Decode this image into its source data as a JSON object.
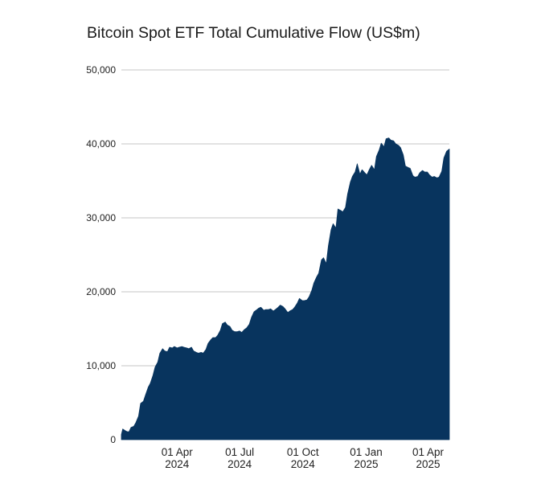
{
  "chart_data": {
    "type": "area",
    "title": "Bitcoin Spot ETF Total Cumulative Flow (US$m)",
    "xlabel": "",
    "ylabel": "",
    "ylim": [
      0,
      50000
    ],
    "yticks": [
      {
        "value": 0,
        "label": "0"
      },
      {
        "value": 10000,
        "label": "10,000"
      },
      {
        "value": 20000,
        "label": "20,000"
      },
      {
        "value": 30000,
        "label": "30,000"
      },
      {
        "value": 40000,
        "label": "40,000"
      },
      {
        "value": 50000,
        "label": "50,000"
      }
    ],
    "xlim": [
      "2024-01-11",
      "2025-05-02"
    ],
    "xticks": [
      {
        "date": "2024-04-01",
        "line1": "01 Apr",
        "line2": "2024"
      },
      {
        "date": "2024-07-01",
        "line1": "01 Jul",
        "line2": "2024"
      },
      {
        "date": "2024-10-01",
        "line1": "01 Oct",
        "line2": "2024"
      },
      {
        "date": "2025-01-01",
        "line1": "01 Jan",
        "line2": "2025"
      },
      {
        "date": "2025-04-01",
        "line1": "01 Apr",
        "line2": "2025"
      }
    ],
    "grid": true,
    "legend": "none",
    "color": "#08345e",
    "gridColor": "#d0d0d0",
    "series": [
      {
        "values": [
          [
            "2024-01-11",
            700
          ],
          [
            "2024-01-13",
            1450
          ],
          [
            "2024-01-16",
            1250
          ],
          [
            "2024-01-19",
            1100
          ],
          [
            "2024-01-22",
            1050
          ],
          [
            "2024-01-25",
            1650
          ],
          [
            "2024-01-29",
            1800
          ],
          [
            "2024-02-01",
            2300
          ],
          [
            "2024-02-05",
            3200
          ],
          [
            "2024-02-08",
            4900
          ],
          [
            "2024-02-12",
            5200
          ],
          [
            "2024-02-15",
            6000
          ],
          [
            "2024-02-19",
            7100
          ],
          [
            "2024-02-22",
            7600
          ],
          [
            "2024-02-26",
            8700
          ],
          [
            "2024-02-29",
            9800
          ],
          [
            "2024-03-04",
            10500
          ],
          [
            "2024-03-07",
            11700
          ],
          [
            "2024-03-11",
            12300
          ],
          [
            "2024-03-14",
            12000
          ],
          [
            "2024-03-18",
            11900
          ],
          [
            "2024-03-21",
            12500
          ],
          [
            "2024-03-25",
            12400
          ],
          [
            "2024-03-28",
            12600
          ],
          [
            "2024-04-01",
            12400
          ],
          [
            "2024-04-04",
            12500
          ],
          [
            "2024-04-08",
            12600
          ],
          [
            "2024-04-11",
            12500
          ],
          [
            "2024-04-15",
            12400
          ],
          [
            "2024-04-18",
            12300
          ],
          [
            "2024-04-22",
            12500
          ],
          [
            "2024-04-25",
            12000
          ],
          [
            "2024-04-29",
            11800
          ],
          [
            "2024-05-02",
            11700
          ],
          [
            "2024-05-06",
            11800
          ],
          [
            "2024-05-09",
            11700
          ],
          [
            "2024-05-13",
            12200
          ],
          [
            "2024-05-16",
            13000
          ],
          [
            "2024-05-20",
            13500
          ],
          [
            "2024-05-23",
            13800
          ],
          [
            "2024-05-27",
            13800
          ],
          [
            "2024-05-30",
            14100
          ],
          [
            "2024-06-03",
            14800
          ],
          [
            "2024-06-06",
            15700
          ],
          [
            "2024-06-10",
            15900
          ],
          [
            "2024-06-13",
            15500
          ],
          [
            "2024-06-17",
            15300
          ],
          [
            "2024-06-20",
            14800
          ],
          [
            "2024-06-24",
            14600
          ],
          [
            "2024-06-27",
            14600
          ],
          [
            "2024-07-01",
            14700
          ],
          [
            "2024-07-04",
            14500
          ],
          [
            "2024-07-08",
            14900
          ],
          [
            "2024-07-11",
            15100
          ],
          [
            "2024-07-15",
            15600
          ],
          [
            "2024-07-18",
            16500
          ],
          [
            "2024-07-22",
            17300
          ],
          [
            "2024-07-25",
            17500
          ],
          [
            "2024-07-29",
            17800
          ],
          [
            "2024-08-01",
            17900
          ],
          [
            "2024-08-05",
            17500
          ],
          [
            "2024-08-08",
            17600
          ],
          [
            "2024-08-12",
            17600
          ],
          [
            "2024-08-15",
            17700
          ],
          [
            "2024-08-19",
            17400
          ],
          [
            "2024-08-22",
            17600
          ],
          [
            "2024-08-26",
            17900
          ],
          [
            "2024-08-29",
            18200
          ],
          [
            "2024-09-02",
            18000
          ],
          [
            "2024-09-05",
            17700
          ],
          [
            "2024-09-09",
            17200
          ],
          [
            "2024-09-12",
            17400
          ],
          [
            "2024-09-16",
            17600
          ],
          [
            "2024-09-19",
            17900
          ],
          [
            "2024-09-23",
            18500
          ],
          [
            "2024-09-26",
            19100
          ],
          [
            "2024-09-30",
            18800
          ],
          [
            "2024-10-03",
            18800
          ],
          [
            "2024-10-07",
            18900
          ],
          [
            "2024-10-10",
            19300
          ],
          [
            "2024-10-14",
            20200
          ],
          [
            "2024-10-17",
            21200
          ],
          [
            "2024-10-21",
            22000
          ],
          [
            "2024-10-24",
            22500
          ],
          [
            "2024-10-28",
            24300
          ],
          [
            "2024-10-31",
            24600
          ],
          [
            "2024-11-04",
            23800
          ],
          [
            "2024-11-07",
            26200
          ],
          [
            "2024-11-11",
            28400
          ],
          [
            "2024-11-14",
            29200
          ],
          [
            "2024-11-18",
            28600
          ],
          [
            "2024-11-21",
            31200
          ],
          [
            "2024-11-25",
            31000
          ],
          [
            "2024-11-28",
            30800
          ],
          [
            "2024-12-02",
            31400
          ],
          [
            "2024-12-05",
            33200
          ],
          [
            "2024-12-09",
            34800
          ],
          [
            "2024-12-12",
            35600
          ],
          [
            "2024-12-16",
            36200
          ],
          [
            "2024-12-19",
            37300
          ],
          [
            "2024-12-23",
            35900
          ],
          [
            "2024-12-26",
            36500
          ],
          [
            "2024-12-30",
            36100
          ],
          [
            "2025-01-02",
            35800
          ],
          [
            "2025-01-06",
            36600
          ],
          [
            "2025-01-09",
            37100
          ],
          [
            "2025-01-13",
            36500
          ],
          [
            "2025-01-16",
            38300
          ],
          [
            "2025-01-20",
            39200
          ],
          [
            "2025-01-23",
            40100
          ],
          [
            "2025-01-27",
            39600
          ],
          [
            "2025-01-30",
            40700
          ],
          [
            "2025-02-03",
            40800
          ],
          [
            "2025-02-06",
            40500
          ],
          [
            "2025-02-10",
            40400
          ],
          [
            "2025-02-13",
            40000
          ],
          [
            "2025-02-17",
            39800
          ],
          [
            "2025-02-20",
            39500
          ],
          [
            "2025-02-24",
            38500
          ],
          [
            "2025-02-27",
            37000
          ],
          [
            "2025-03-03",
            36800
          ],
          [
            "2025-03-06",
            36700
          ],
          [
            "2025-03-10",
            35700
          ],
          [
            "2025-03-13",
            35500
          ],
          [
            "2025-03-17",
            35600
          ],
          [
            "2025-03-20",
            36100
          ],
          [
            "2025-03-24",
            36400
          ],
          [
            "2025-03-27",
            36200
          ],
          [
            "2025-03-31",
            36200
          ],
          [
            "2025-04-03",
            35800
          ],
          [
            "2025-04-07",
            35500
          ],
          [
            "2025-04-10",
            35600
          ],
          [
            "2025-04-14",
            35400
          ],
          [
            "2025-04-17",
            35500
          ],
          [
            "2025-04-21",
            36300
          ],
          [
            "2025-04-24",
            38100
          ],
          [
            "2025-04-28",
            39000
          ],
          [
            "2025-05-02",
            39300
          ]
        ]
      }
    ]
  }
}
